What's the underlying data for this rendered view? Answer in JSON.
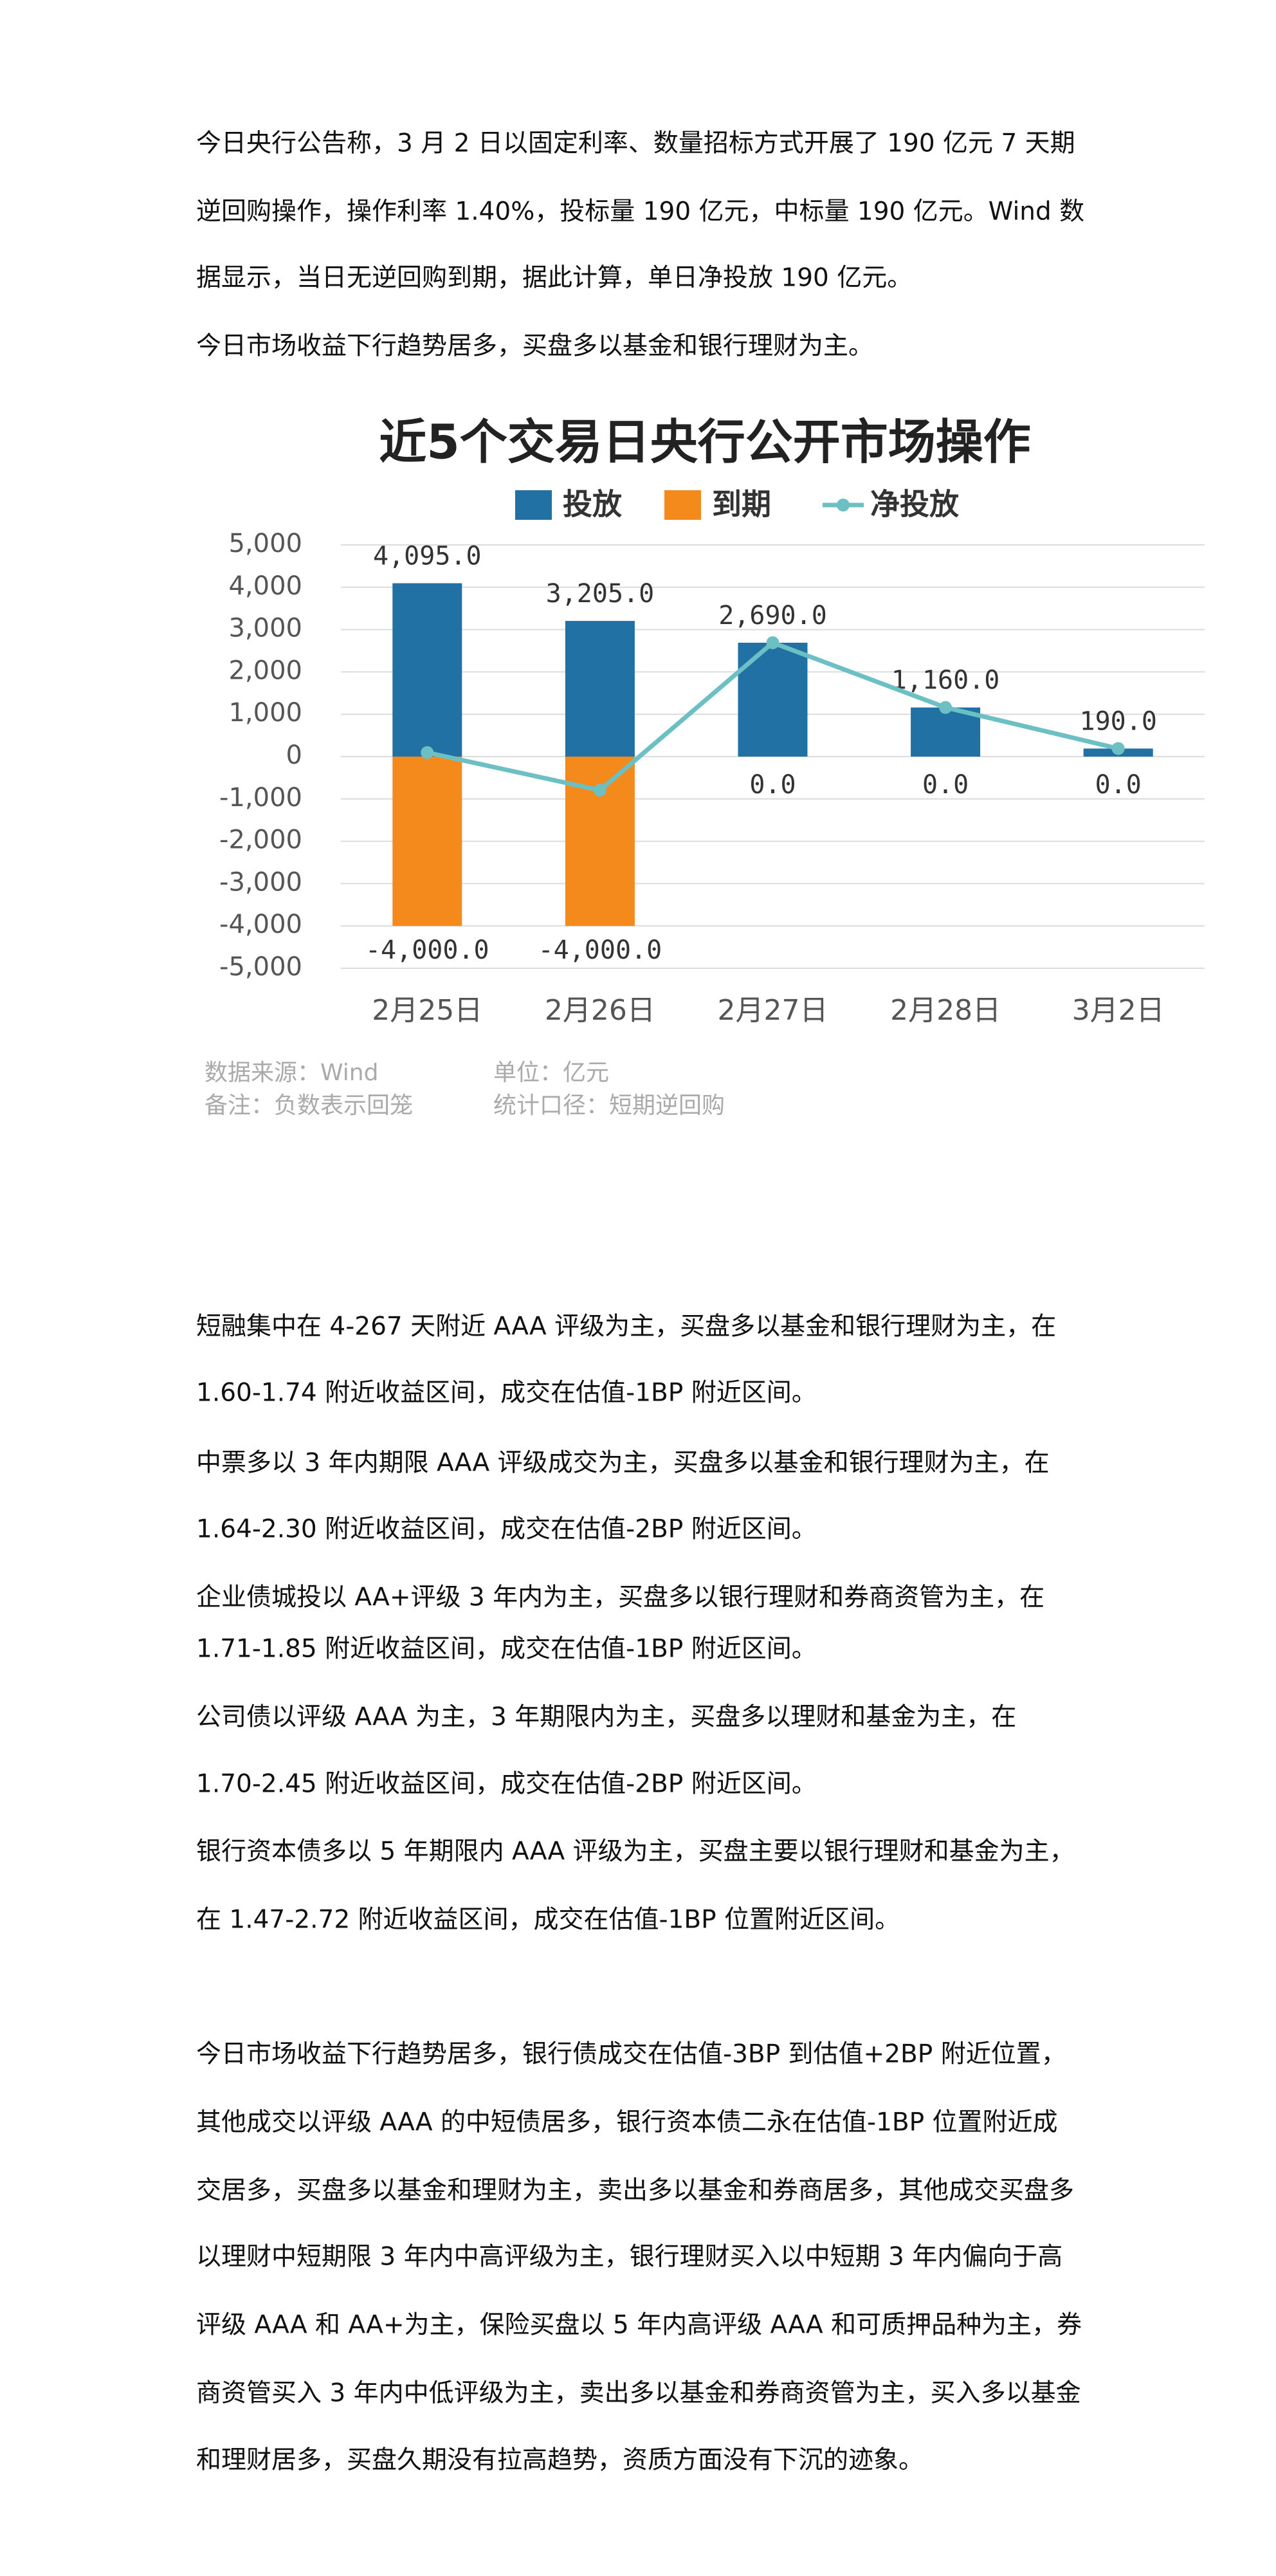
{
  "paragraphs_top": [
    [
      "今日央行公告称，3 月 2 日以固定利率、数量招标方式开展了 190 亿元 7 天期",
      "逆回购操作，操作利率 1.40%，投标量 190 亿元，中标量 190 亿元。Wind 数",
      "据显示，当日无逆回购到期，据此计算，单日净投放 190 亿元。"
    ],
    [
      "今日市场收益下行趋势居多，买盘多以基金和银行理财为主。"
    ]
  ],
  "chart_data": {
    "type": "bar",
    "title": "近5个交易日央行公开市场操作",
    "categories": [
      "2月25日",
      "2月26日",
      "2月27日",
      "2月28日",
      "3月2日"
    ],
    "series": [
      {
        "name": "投放",
        "color": "#2271a5",
        "values": [
          4095,
          3205,
          2690,
          1160,
          190
        ],
        "value_labels": [
          "4,095.0",
          "3,205.0",
          "2,690.0",
          "1,160.0",
          "190.0"
        ]
      },
      {
        "name": "到期",
        "color": "#f4891c",
        "values": [
          -4000,
          -4000,
          0,
          0,
          0
        ],
        "value_labels": [
          "-4,000.0",
          "-4,000.0",
          "0.0",
          "0.0",
          "0.0"
        ]
      },
      {
        "name": "净投放",
        "color": "#6cc0c3",
        "type": "line",
        "values": [
          95,
          -795,
          2690,
          1160,
          190
        ]
      }
    ],
    "ylim": [
      -5000,
      5000
    ],
    "yticks": [
      {
        "value": -5000,
        "label": "-5,000"
      },
      {
        "value": -4000,
        "label": "-4,000"
      },
      {
        "value": -3000,
        "label": "-3,000"
      },
      {
        "value": -2000,
        "label": "-2,000"
      },
      {
        "value": -1000,
        "label": "-1,000"
      },
      0,
      {
        "value": 1000,
        "label": "1,000"
      },
      {
        "value": 2000,
        "label": "2,000"
      },
      {
        "value": 3000,
        "label": "3,000"
      },
      {
        "value": 4000,
        "label": "4,000"
      },
      {
        "value": 5000,
        "label": "5,000"
      }
    ],
    "grid": true,
    "notes": [
      "数据来源：Wind",
      "单位：亿元",
      "备注：负数表示回笼",
      "统计口径：短期逆回购"
    ]
  },
  "paragraphs_bottom": [
    [
      "短融集中在 4-267 天附近 AAA 评级为主，买盘多以基金和银行理财为主，在",
      "1.60-1.74 附近收益区间，成交在估值-1BP 附近区间。"
    ],
    [
      "中票多以 3 年内期限 AAA 评级成交为主，买盘多以基金和银行理财为主，在",
      "1.64-2.30 附近收益区间，成交在估值-2BP 附近区间。"
    ],
    [
      "企业债城投以 AA+评级 3 年内为主，买盘多以银行理财和券商资管为主，在",
      "1.71-1.85 附近收益区间，成交在估值-1BP 附近区间。"
    ],
    [
      "公司债以评级 AAA 为主，3 年期限内为主，买盘多以理财和基金为主，在",
      "1.70-2.45 附近收益区间，成交在估值-2BP 附近区间。"
    ],
    [
      "银行资本债多以 5 年期限内 AAA 评级为主，买盘主要以银行理财和基金为主，",
      "在 1.47-2.72 附近收益区间，成交在估值-1BP 位置附近区间。"
    ],
    [
      "今日市场收益下行趋势居多，银行债成交在估值-3BP 到估值+2BP 附近位置，",
      "其他成交以评级 AAA 的中短债居多，银行资本债二永在估值-1BP 位置附近成",
      "交居多，买盘多以基金和理财为主，卖出多以基金和券商居多，其他成交买盘多",
      "以理财中短期限 3 年内中高评级为主，银行理财买入以中短期 3 年内偏向于高",
      "评级 AAA 和 AA+为主，保险买盘以 5 年内高评级 AAA 和可质押品种为主，券",
      "商资管买入 3 年内中低评级为主，卖出多以基金和券商资管为主，买入多以基金",
      "和理财居多，买盘久期没有拉高趋势，资质方面没有下沉的迹象。"
    ]
  ]
}
